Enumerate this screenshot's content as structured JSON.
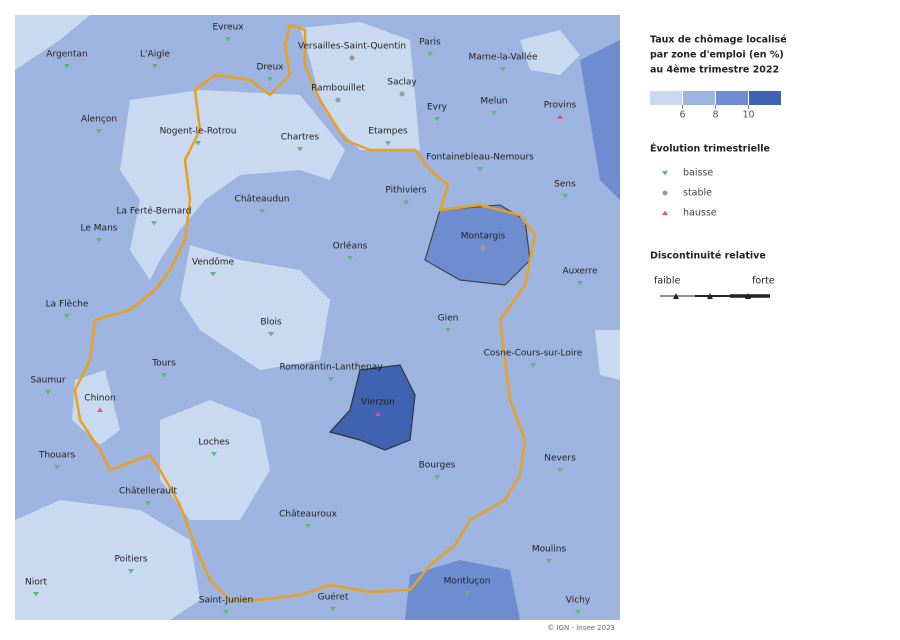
{
  "legend": {
    "title": [
      "Taux de chômage localisé",
      "par zone d'emploi (en %)",
      "au 4ème trimestre 2022"
    ],
    "colors": [
      "#c9d9f0",
      "#9db4e0",
      "#6e8dd0",
      "#3f63b1"
    ],
    "ticks": [
      6,
      8,
      10
    ],
    "trend_title": "Évolution trimestrielle",
    "trends": [
      "baisse",
      "stable",
      "hausse"
    ],
    "discontinuity_title": "Discontinuité relative",
    "discontinuity_labels": [
      "faible",
      "forte"
    ]
  },
  "places": [
    "Evreux",
    "Versailles-Saint-Quentin",
    "Paris",
    "Marne-la-Vallée",
    "Argentan",
    "L'Aigle",
    "Dreux",
    "Saclay",
    "Rambouillet",
    "Evry",
    "Melun",
    "Provins",
    "Alençon",
    "Nogent-le-Rotrou",
    "Chartres",
    "Etampes",
    "Fontainebleau-Nemours",
    "Sens",
    "Pithiviers",
    "Châteaudun",
    "La Ferté-Bernard",
    "Montargis",
    "Le Mans",
    "Orléans",
    "Auxerre",
    "Vendôme",
    "La Flèche",
    "Blois",
    "Gien",
    "Cosne-Cours-sur-Loire",
    "Tours",
    "Romorantin-Lanthenay",
    "Saumur",
    "Chinon",
    "Vierzon",
    "Loches",
    "Nevers",
    "Thouars",
    "Bourges",
    "Châtellerault",
    "Châteauroux",
    "Moulins",
    "Poitiers",
    "Niort",
    "Saint-Junien",
    "Guéret",
    "Montluçon",
    "Vichy"
  ],
  "credit": "© IGN - Insee 2023"
}
